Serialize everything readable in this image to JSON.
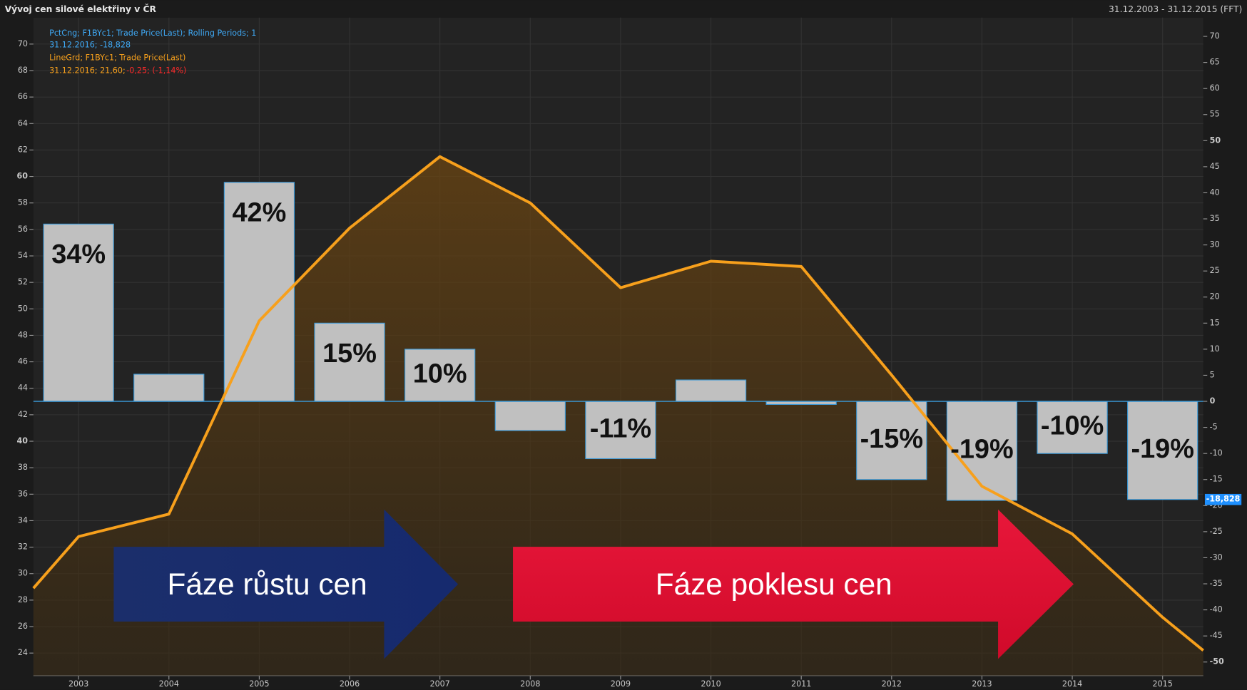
{
  "chart_data": {
    "type": "bar-line",
    "title": "Vývoj cen silové elektřiny v ČR",
    "date_range": "31.12.2003 - 31.12.2015 (FFT)",
    "xlim": [
      2002.5,
      2015.45
    ],
    "xticks": [
      2003,
      2004,
      2005,
      2006,
      2007,
      2008,
      2009,
      2010,
      2011,
      2012,
      2013,
      2014,
      2015
    ],
    "ylim": [
      22.3,
      72.0
    ],
    "yticks": [
      24,
      26,
      28,
      30,
      32,
      34,
      36,
      38,
      40,
      42,
      44,
      46,
      48,
      50,
      52,
      54,
      56,
      58,
      60,
      62,
      64,
      66,
      68,
      70
    ],
    "y2lim": [
      -52.6,
      73.6
    ],
    "y2ticks": [
      -50,
      -45,
      -40,
      -35,
      -30,
      -25,
      -20,
      -15,
      -10,
      -5,
      0,
      5,
      10,
      15,
      20,
      25,
      30,
      35,
      40,
      45,
      50,
      55,
      60,
      65,
      70
    ],
    "grid": true,
    "series": [
      {
        "name": "PctCng; F1BYc1; Trade Price(Last); Rolling Periods; 1",
        "legend_value": "31.12.2016; -18,828",
        "type": "bar",
        "axis": "y2",
        "color": "#c0c0c0",
        "edge_color": "#3a9ad9",
        "x": [
          2003,
          2004,
          2005,
          2006,
          2007,
          2008,
          2009,
          2010,
          2011,
          2012,
          2013,
          2014,
          2015
        ],
        "values": [
          34,
          5.2,
          42,
          15,
          10,
          -5.6,
          -11,
          4.1,
          -0.6,
          -15,
          -19,
          -10,
          -18.828
        ],
        "value_labels": [
          "34%",
          null,
          "42%",
          "15%",
          "10%",
          null,
          "-11%",
          null,
          null,
          "-15%",
          "-19%",
          "-10%",
          "-19%"
        ],
        "last_label": "-18,828"
      },
      {
        "name": "LineGrd; F1BYc1; Trade Price(Last)",
        "legend_value": "31.12.2016; 21,60;",
        "legend_change": "-0,25; (-1,14%)",
        "type": "line",
        "color": "#f7a01c",
        "x": [
          2002.5,
          2003,
          2004,
          2005,
          2006,
          2007,
          2008,
          2009,
          2010,
          2011,
          2012,
          2013,
          2014,
          2015,
          2015.45
        ],
        "values": [
          28.9,
          32.8,
          34.5,
          49.1,
          56.1,
          61.5,
          58.0,
          51.6,
          53.6,
          53.2,
          45.0,
          36.6,
          33.0,
          26.7,
          24.2
        ]
      }
    ],
    "annotations": [
      "Fáze růstu cen",
      "Fáze poklesu cen"
    ]
  }
}
